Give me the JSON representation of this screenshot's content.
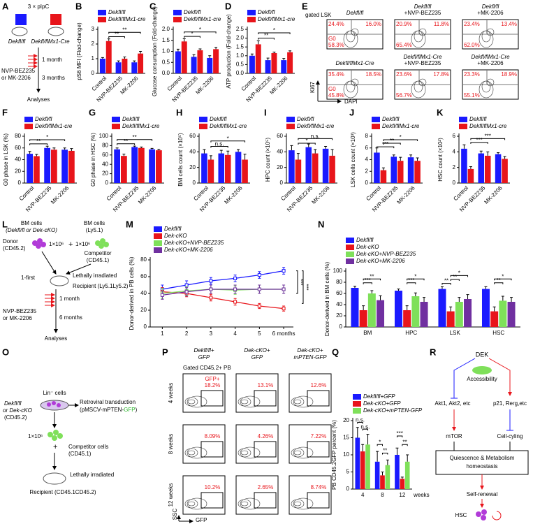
{
  "chart_data": [
    {
      "panel": "B",
      "type": "bar",
      "ylabel": "pS6 MFI (Flod-change)",
      "categories": [
        "Control",
        "NVP-BEZ235",
        "MK-2206"
      ],
      "series": [
        {
          "name": "Dekfl/fl",
          "color": "#1a1aff",
          "values": [
            1.0,
            0.75,
            0.75
          ],
          "errors": [
            0.08,
            0.1,
            0.1
          ]
        },
        {
          "name": "Dekfl/flMx1-cre",
          "color": "#e8151b",
          "values": [
            2.2,
            1.0,
            1.35
          ],
          "errors": [
            0.15,
            0.12,
            0.15
          ]
        }
      ],
      "ylim": [
        0,
        3
      ],
      "yticks": [
        0,
        1,
        2,
        3
      ],
      "annotations": [
        "**",
        "**"
      ]
    },
    {
      "panel": "C",
      "type": "bar",
      "ylabel": "Glucose consumption (Fold-change)",
      "categories": [
        "Control",
        "NVP-BEZ235",
        "MK-2206"
      ],
      "series": [
        {
          "name": "Dekfl/fl",
          "color": "#1a1aff",
          "values": [
            1.0,
            0.75,
            0.7
          ],
          "errors": [
            0.1,
            0.1,
            0.1
          ]
        },
        {
          "name": "Dekfl/flMx1-cre",
          "color": "#e8151b",
          "values": [
            1.45,
            1.05,
            1.1
          ],
          "errors": [
            0.12,
            0.06,
            0.08
          ]
        }
      ],
      "ylim": [
        0,
        2
      ],
      "yticks": [
        {
          "value": 0,
          "label": "0.0"
        },
        0.5,
        {
          "value": 1,
          "label": "1.0"
        },
        1.5,
        {
          "value": 2,
          "label": "2.0"
        }
      ],
      "annotations": [
        "*",
        "*"
      ]
    },
    {
      "panel": "D",
      "type": "bar",
      "ylabel": "ATP production (Fold-change)",
      "categories": [
        "Control",
        "NVP-BEZ235",
        "MK-2206"
      ],
      "series": [
        {
          "name": "Dekfl/fl",
          "color": "#1a1aff",
          "values": [
            1.0,
            0.75,
            0.75
          ],
          "errors": [
            0.1,
            0.12,
            0.1
          ]
        },
        {
          "name": "Dekfl/flMx1-cre",
          "color": "#e8151b",
          "values": [
            1.65,
            1.15,
            1.2
          ],
          "errors": [
            0.2,
            0.06,
            0.08
          ]
        }
      ],
      "ylim": [
        0,
        2.5
      ],
      "yticks": [
        {
          "value": 0,
          "label": "0.0"
        },
        0.5,
        {
          "value": 1,
          "label": "1.0"
        },
        1.5,
        {
          "value": 2,
          "label": "2.0"
        },
        2.5
      ],
      "annotations": [
        "**",
        "*"
      ]
    },
    {
      "panel": "F",
      "type": "bar",
      "ylabel": "G0 phase in LSK (%)",
      "categories": [
        "Control",
        "NVP-BEZ235",
        "MK-2206"
      ],
      "series": [
        {
          "name": "Dekfl/fl",
          "color": "#1a1aff",
          "values": [
            50,
            60,
            57
          ],
          "errors": [
            4,
            3,
            3
          ]
        },
        {
          "name": "Dekfl/flMx1-cre",
          "color": "#e8151b",
          "values": [
            46,
            57,
            55
          ],
          "errors": [
            3,
            3,
            4
          ]
        }
      ],
      "ylim": [
        0,
        80
      ],
      "yticks": [
        0,
        20,
        40,
        60,
        80
      ],
      "annotations": [
        "**",
        "*"
      ]
    },
    {
      "panel": "G",
      "type": "bar",
      "ylabel": "G0 phase in HSC (%)",
      "categories": [
        "Control",
        "NVP-BEZ235",
        "MK-2206"
      ],
      "series": [
        {
          "name": "Dekfl/fl",
          "color": "#1a1aff",
          "values": [
            72,
            77,
            72
          ],
          "errors": [
            3,
            2,
            2
          ]
        },
        {
          "name": "Dekfl/flMx1-cre",
          "color": "#e8151b",
          "values": [
            58,
            75,
            70
          ],
          "errors": [
            4,
            2,
            2
          ]
        }
      ],
      "ylim": [
        0,
        100
      ],
      "yticks": [
        0,
        20,
        40,
        60,
        80,
        100
      ],
      "annotations": [
        "**",
        "**"
      ]
    },
    {
      "panel": "H",
      "type": "bar",
      "ylabel": "BM cells count (×10⁵)",
      "categories": [
        "Control",
        "NVP-BEZ235",
        "MK-2206"
      ],
      "series": [
        {
          "name": "Dekfl/fl",
          "color": "#1a1aff",
          "values": [
            38,
            38,
            40
          ],
          "errors": [
            5,
            4,
            3
          ]
        },
        {
          "name": "Dekfl/flMx1-cre",
          "color": "#e8151b",
          "values": [
            30,
            36,
            30
          ],
          "errors": [
            5,
            5,
            7
          ]
        }
      ],
      "ylim": [
        0,
        60
      ],
      "yticks": [
        0,
        20,
        40,
        60
      ],
      "annotations": [
        "n.s.",
        "*"
      ]
    },
    {
      "panel": "I",
      "type": "bar",
      "ylabel": "HPC count (×10⁵)",
      "categories": [
        "Control",
        "NVP-BEZ235",
        "MK-2206"
      ],
      "series": [
        {
          "name": "Dekfl/fl",
          "color": "#1a1aff",
          "values": [
            42,
            46,
            44
          ],
          "errors": [
            6,
            4,
            3
          ]
        },
        {
          "name": "Dekfl/flMx1-cre",
          "color": "#e8151b",
          "values": [
            30,
            38,
            35
          ],
          "errors": [
            8,
            5,
            8
          ]
        }
      ],
      "ylim": [
        0,
        60
      ],
      "yticks": [
        0,
        20,
        40,
        60
      ],
      "annotations": [
        "*",
        "n.s."
      ]
    },
    {
      "panel": "J",
      "type": "bar",
      "ylabel": "LSK cells count (×10³)",
      "categories": [
        "Control",
        "NVP-BEZ235",
        "MK-2206"
      ],
      "series": [
        {
          "name": "Dekfl/fl",
          "color": "#1a1aff",
          "values": [
            5.2,
            4.5,
            4.4
          ],
          "errors": [
            0.8,
            0.3,
            0.4
          ]
        },
        {
          "name": "Dekfl/flMx1-cre",
          "color": "#e8151b",
          "values": [
            2.2,
            3.8,
            3.8
          ],
          "errors": [
            0.4,
            0.6,
            0.5
          ]
        }
      ],
      "ylim": [
        0,
        8
      ],
      "yticks": [
        0,
        2,
        4,
        6,
        8
      ],
      "annotations": [
        "*",
        "**",
        "***"
      ]
    },
    {
      "panel": "K",
      "type": "bar",
      "ylabel": "HSC count (×10²)",
      "categories": [
        "Control",
        "NVP-BEZ235",
        "MK-2206"
      ],
      "series": [
        {
          "name": "Dekfl/fl",
          "color": "#1a1aff",
          "values": [
            4.4,
            3.8,
            3.7
          ],
          "errors": [
            0.5,
            0.3,
            0.2
          ]
        },
        {
          "name": "Dekfl/flMx1-cre",
          "color": "#e8151b",
          "values": [
            1.8,
            3.5,
            3.1
          ],
          "errors": [
            0.3,
            0.5,
            0.3
          ]
        }
      ],
      "ylim": [
        0,
        6
      ],
      "yticks": [
        0,
        2,
        4,
        6
      ],
      "annotations": [
        "***",
        "***"
      ]
    },
    {
      "panel": "M",
      "type": "line",
      "ylabel": "Donor-derived in PB cells (%)",
      "x": [
        1,
        2,
        3,
        4,
        5,
        6
      ],
      "xlim": [
        0.5,
        6.4
      ],
      "xticks": [
        1,
        2,
        3,
        4,
        5,
        {
          "value": 6,
          "label": "6 months"
        }
      ],
      "series": [
        {
          "name": "Dekfl/fl",
          "color": "#1a1aff",
          "values": [
            45,
            50,
            55,
            58,
            62,
            67
          ],
          "errors": [
            5,
            5,
            4,
            4,
            4,
            4
          ]
        },
        {
          "name": "Dek-cKO",
          "color": "#e8151b",
          "values": [
            42,
            40,
            35,
            30,
            25,
            22
          ],
          "errors": [
            5,
            4,
            4,
            4,
            3,
            3
          ]
        },
        {
          "name": "Dek-cKO+NVP-BEZ235",
          "color": "#7fe05a",
          "values": [
            40,
            43,
            45,
            44,
            45,
            45
          ],
          "errors": [
            6,
            5,
            5,
            5,
            5,
            5
          ]
        },
        {
          "name": "Dek-cKO+MK-2206",
          "color": "#7030a0",
          "values": [
            38,
            42,
            45,
            45,
            45,
            45
          ],
          "errors": [
            5,
            5,
            5,
            5,
            5,
            5
          ]
        }
      ],
      "ylim": [
        0,
        80
      ],
      "yticks": [
        0,
        20,
        40,
        60,
        80
      ],
      "annotations": [
        "***",
        "***"
      ]
    },
    {
      "panel": "N",
      "type": "bar",
      "ylabel": "Donor-derived in BM cells (%)",
      "categories": [
        "BM",
        "HPC",
        "LSK",
        "HSC"
      ],
      "series": [
        {
          "name": "Dekfl/fl",
          "color": "#1a1aff",
          "values": [
            70,
            65,
            68,
            68
          ],
          "errors": [
            3,
            3,
            4,
            4
          ]
        },
        {
          "name": "Dek-cKO",
          "color": "#e8151b",
          "values": [
            30,
            30,
            28,
            28
          ],
          "errors": [
            8,
            8,
            8,
            8
          ]
        },
        {
          "name": "Dek-cKO+NVP-BEZ235",
          "color": "#7fe05a",
          "values": [
            60,
            55,
            45,
            47
          ],
          "errors": [
            5,
            6,
            8,
            8
          ]
        },
        {
          "name": "Dek-cKO+MK-2206",
          "color": "#7030a0",
          "values": [
            48,
            45,
            50,
            45
          ],
          "errors": [
            8,
            8,
            8,
            8
          ]
        }
      ],
      "ylim": [
        0,
        100
      ],
      "yticks": [
        0,
        20,
        40,
        60,
        80,
        100
      ],
      "annotations": [
        "**",
        "***",
        "*",
        "***",
        "*",
        "**",
        "**",
        "*",
        "**"
      ]
    },
    {
      "panel": "Q",
      "type": "bar",
      "ylabel": "PB CD45.2GFP percent (%)",
      "xlabel": "weeks",
      "categories": [
        "4",
        "8",
        "12"
      ],
      "series": [
        {
          "name": "Dekfl/fl+GFP",
          "color": "#1a1aff",
          "values": [
            15,
            8,
            10
          ],
          "errors": [
            3,
            3,
            2
          ]
        },
        {
          "name": "Dek-cKO+GFP",
          "color": "#e8151b",
          "values": [
            11,
            4,
            3
          ],
          "errors": [
            2,
            1,
            0.5
          ]
        },
        {
          "name": "Dek-cKO+mPTEN-GFP",
          "color": "#7fe05a",
          "values": [
            13,
            7,
            8
          ],
          "errors": [
            3,
            1.5,
            2
          ]
        }
      ],
      "ylim": [
        0,
        20
      ],
      "yticks": [
        0,
        5,
        10,
        15,
        20
      ],
      "annotations": [
        "n.s.",
        "n.s.",
        "*",
        "**",
        "***",
        "**"
      ]
    }
  ],
  "panel_a": {
    "letter": "A",
    "pipc": "3 × pIpC",
    "ctrl": "Dekfl/fl",
    "cre": "Dekfl/flMx1-Cre",
    "drug": "NVP-BEZ235",
    "drug2": "or MK-2206",
    "t1": "1 month",
    "t2": "3 months",
    "end": "Analyses"
  },
  "flow_e": {
    "letter": "E",
    "gate": "gated LSK",
    "ylabel": "Ki67",
    "xlabel": "DAPI",
    "g0": "G0",
    "plots": [
      {
        "header": [
          "Dekfl/fl"
        ],
        "q": [
          "24.4%",
          "16.0%",
          "58.3%"
        ]
      },
      {
        "header": [
          "Dekfl/fl",
          "+NVP-BEZ235"
        ],
        "q": [
          "20.9%",
          "11.8%",
          "65.4%"
        ]
      },
      {
        "header": [
          "Dekfl/fl",
          "+MK-2206"
        ],
        "q": [
          "23.4%",
          "13.4%",
          "62.0%"
        ]
      },
      {
        "header": [
          "Dekfl/flMx1-Cre"
        ],
        "q": [
          "35.4%",
          "18.5%",
          "45.8%"
        ]
      },
      {
        "header": [
          "Dekfl/flMx1-Cre",
          "+NVP-BEZ235"
        ],
        "q": [
          "23.6%",
          "17.8%",
          "56.7%"
        ]
      },
      {
        "header": [
          "Dekfl/flMx1-Cre",
          "+MK-2206"
        ],
        "q": [
          "23.3%",
          "18.9%",
          "55.1%"
        ]
      }
    ]
  },
  "panel_l": {
    "letter": "L",
    "bm": "BM cells",
    "bm_sub": "(Dekfl/fl or Dek-cKO)",
    "donor": "Donor",
    "donor_sub": "(CD45.2)",
    "dose1": "1×10⁶",
    "plus": "+",
    "bm2": "BM cells",
    "bm2_sub": "(Ly5.1)",
    "dose2": "1×10⁶",
    "comp": "Competitor",
    "comp_sub": "(CD45.1)",
    "first": "1-first",
    "irr": "Lethally irradiated",
    "recip": "Recipient (Ly5.1Ly5.2)",
    "drug": "NVP-BEZ235",
    "drug2": "or MK-2206",
    "t1": "1 month",
    "t2": "6 months",
    "end": "Analyses"
  },
  "panel_o": {
    "letter": "O",
    "g1": "Dekfl/fl",
    "g2": "or Dek-cKO",
    "g3": "(CD45.2)",
    "lin": "Lin⁻ cells",
    "retro": "Retroviral transduction",
    "vec1": "(pMSCV-mPTEN-",
    "vec2": "GFP",
    "vec3": ")",
    "dose": "1×10⁶",
    "plus": "+",
    "comp": "Competitor cells",
    "comp_sub": "(CD45.1)",
    "irr": "Lethally irradiated",
    "recip": "Recipient (CD45.1CD45.2)"
  },
  "flow_p": {
    "letter": "P",
    "gate": "Gated CD45.2+ PB",
    "gfp_gate": "GFP+",
    "ylabel": "SSC",
    "xlabel": "GFP",
    "cols": [
      [
        "Dekfl/fl+",
        "GFP"
      ],
      [
        "Dek-cKO+",
        "GFP"
      ],
      [
        "Dek-cKO+",
        "mPTEN-GFP"
      ]
    ],
    "rows": [
      "4 weeks",
      "8 weeks",
      "12 weeks"
    ],
    "values": [
      [
        "18.2%",
        "13.1%",
        "12.6%"
      ],
      [
        "8.09%",
        "4.26%",
        "7.22%"
      ],
      [
        "10.2%",
        "2.65%",
        "8.74%"
      ]
    ]
  },
  "panel_r": {
    "letter": "R",
    "dek": "DEK",
    "acc": "Accessibility",
    "akt": "Akt1, Akt2, etc",
    "p21": "p21, Rerg,etc",
    "mtor": "mTOR",
    "cycle": "Cell-cyling",
    "q1": "Quiescence & Metabolism",
    "q2": "homeostasis",
    "self": "Self-renewal",
    "hsc": "HSC"
  }
}
